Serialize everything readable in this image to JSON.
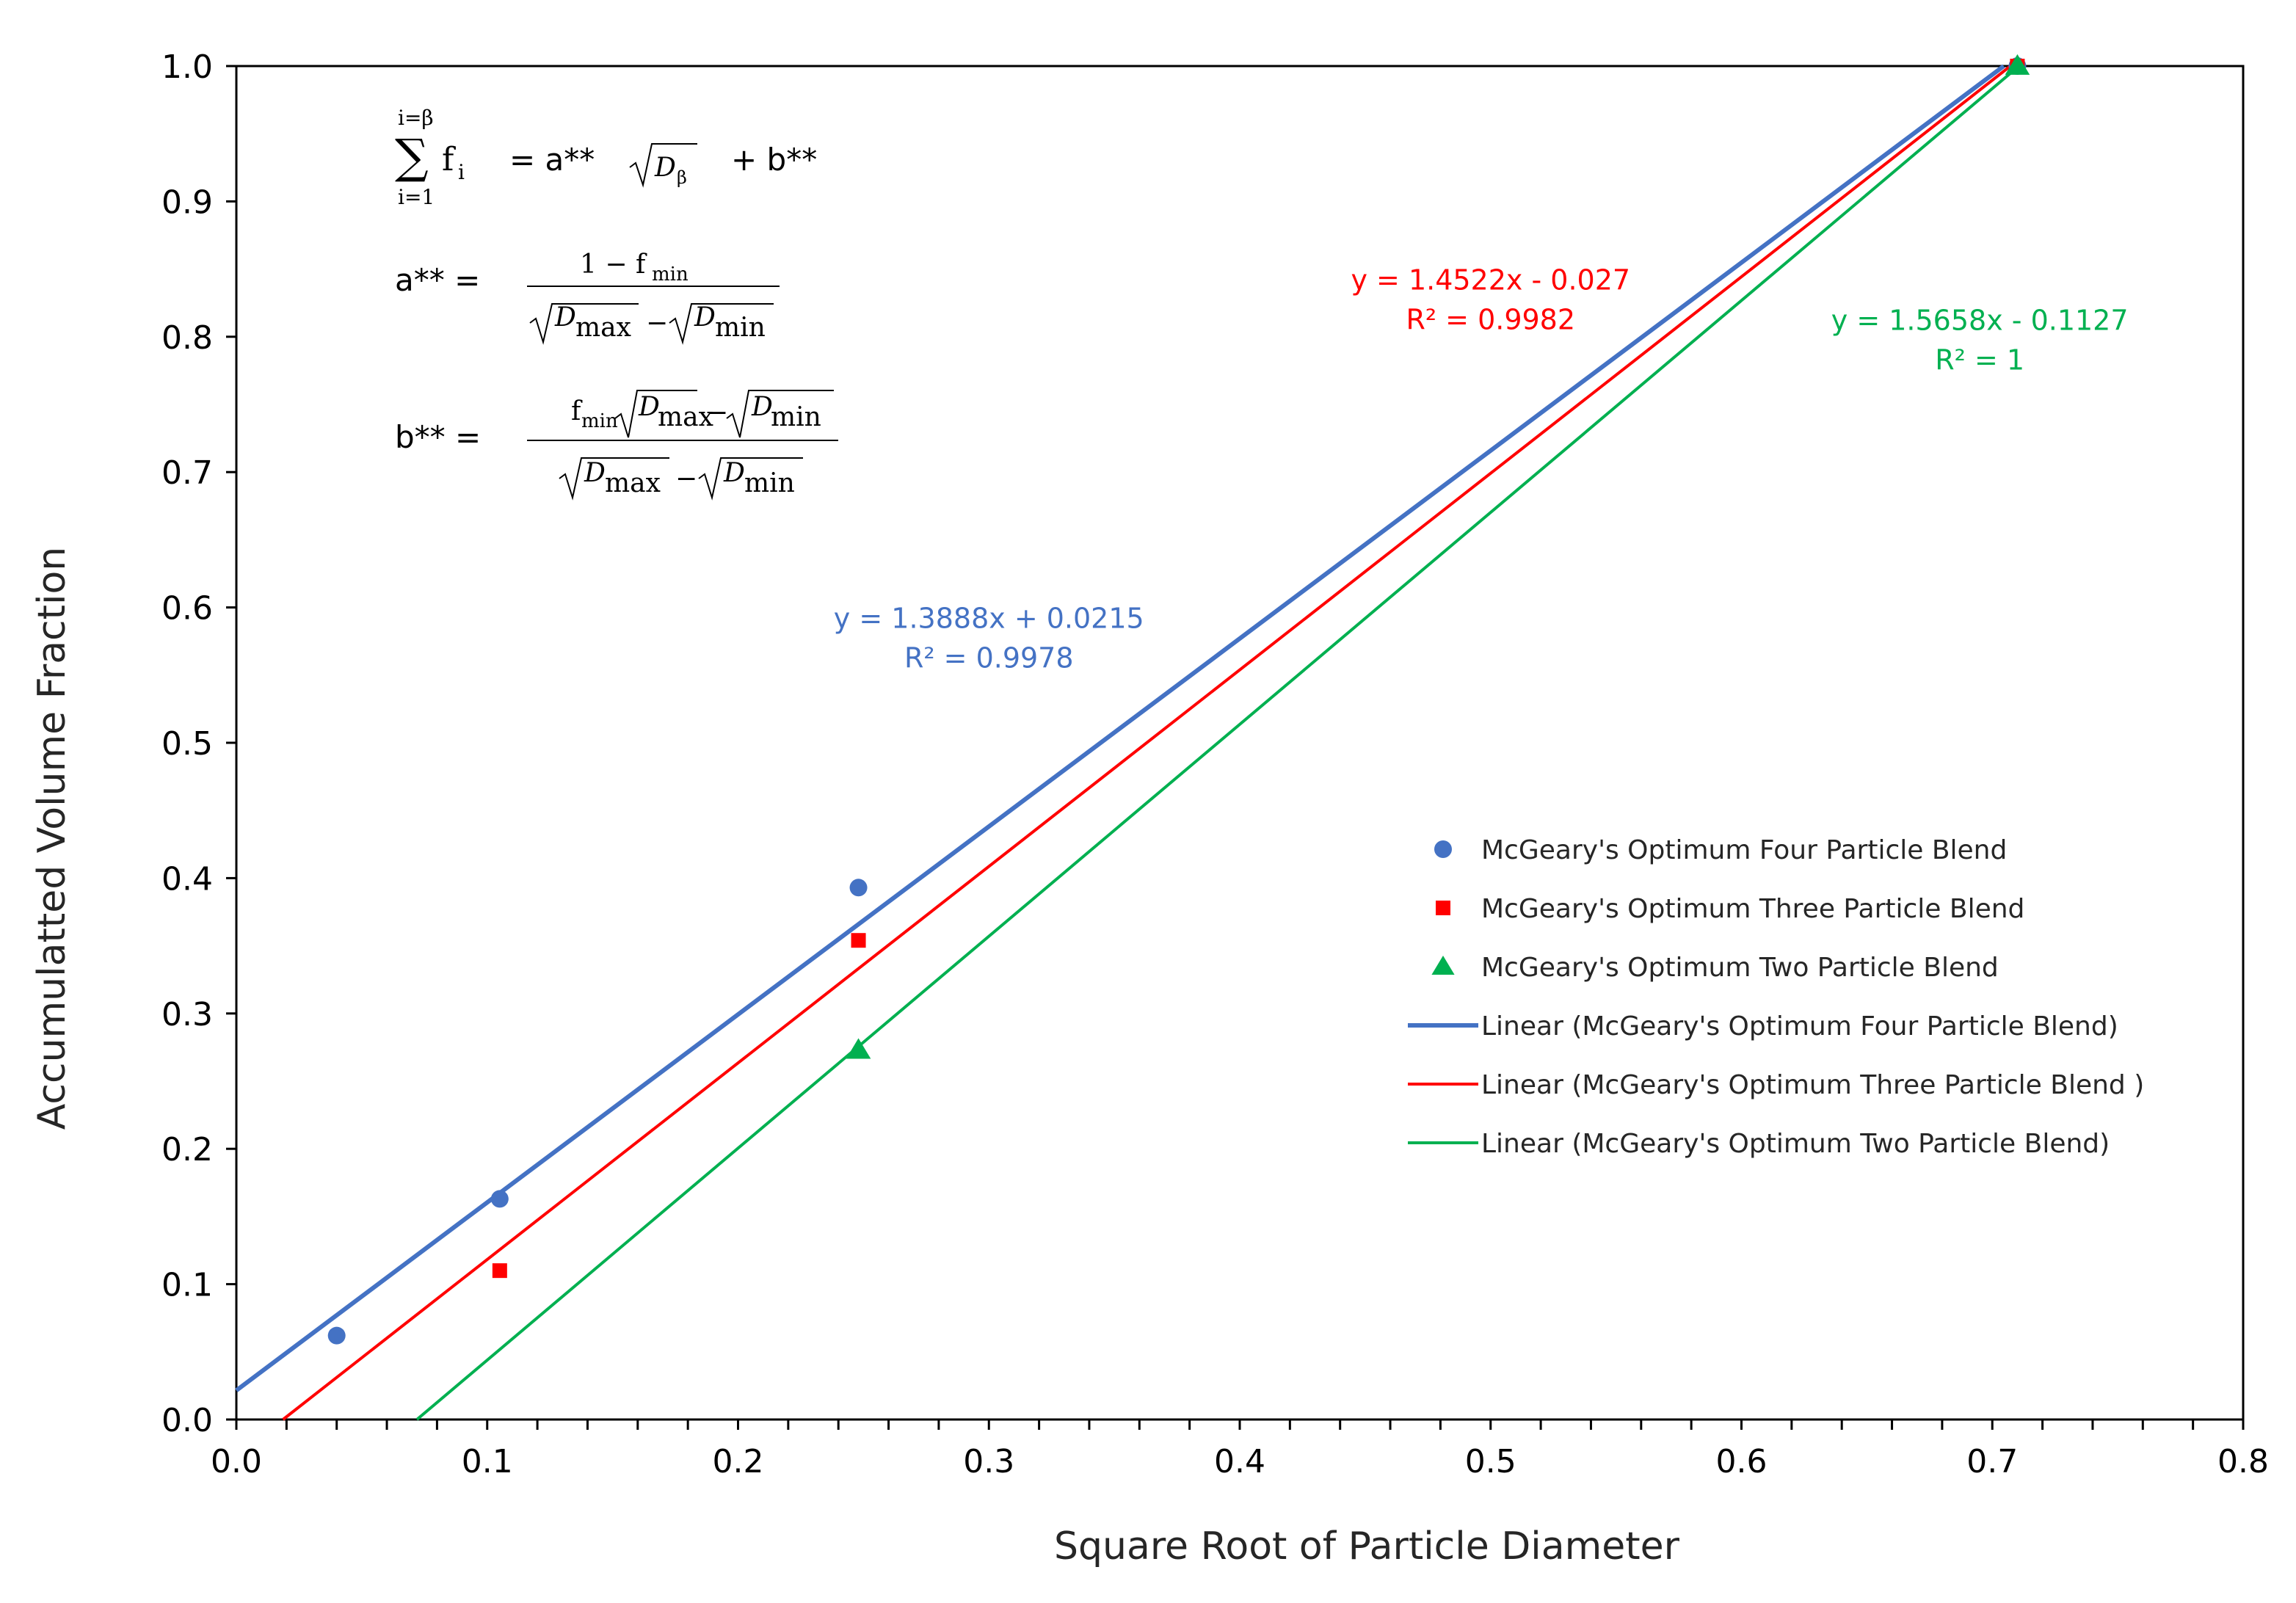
{
  "chart_data": {
    "type": "scatter",
    "xlabel": "Square Root of Particle Diameter",
    "ylabel": "Accumulatted Volume Fraction",
    "xlim": [
      0,
      0.8
    ],
    "ylim": [
      0,
      1.0
    ],
    "xticks": [
      "0.0",
      "0.1",
      "0.2",
      "0.3",
      "0.4",
      "0.5",
      "0.6",
      "0.7",
      "0.8"
    ],
    "yticks": [
      "0.0",
      "0.1",
      "0.2",
      "0.3",
      "0.4",
      "0.5",
      "0.6",
      "0.7",
      "0.8",
      "0.9",
      "1.0"
    ],
    "grid": false,
    "legend_position": "center-right",
    "series": [
      {
        "name": "McGeary's Optimum Four Particle Blend",
        "marker": "circle",
        "color": "#4472C4",
        "points": [
          [
            0.04,
            0.062
          ],
          [
            0.105,
            0.163
          ],
          [
            0.248,
            0.393
          ],
          [
            0.71,
            1.0
          ]
        ]
      },
      {
        "name": "McGeary's Optimum Three Particle Blend",
        "marker": "square",
        "color": "#FF0000",
        "points": [
          [
            0.105,
            0.11
          ],
          [
            0.248,
            0.354
          ],
          [
            0.71,
            1.0
          ]
        ]
      },
      {
        "name": "McGeary's Optimum Two Particle Blend",
        "marker": "triangle",
        "color": "#00B050",
        "points": [
          [
            0.248,
            0.273
          ],
          [
            0.71,
            1.0
          ]
        ]
      }
    ],
    "trendlines": [
      {
        "name": "Linear (McGeary's Optimum Four Particle Blend)",
        "color": "#4472C4",
        "slope": 1.3888,
        "intercept": 0.0215,
        "equation": "y = 1.3888x + 0.0215",
        "r2": "R² = 0.9978",
        "label_at": [
          0.3,
          0.585
        ]
      },
      {
        "name": "Linear (McGeary's Optimum Three Particle Blend )",
        "color": "#FF0000",
        "slope": 1.4522,
        "intercept": -0.027,
        "equation": "y = 1.4522x - 0.027",
        "r2": "R² = 0.9982",
        "label_at": [
          0.5,
          0.835
        ]
      },
      {
        "name": "Linear (McGeary's Optimum Two Particle Blend)",
        "color": "#00B050",
        "slope": 1.5658,
        "intercept": -0.1127,
        "equation": "y = 1.5658x - 0.1127",
        "r2": "R² = 1",
        "label_at": [
          0.695,
          0.805
        ]
      }
    ]
  },
  "formulas": {
    "sum_upper": "i=β",
    "sum_lower": "i=1",
    "sigma": "∑",
    "f_i": "f",
    "sub_i": "i",
    "eq1_rhs": "=   a**",
    "d_beta": "D",
    "sub_beta": "β",
    "plus_b": "+    b**",
    "a_lhs": "a**  =",
    "a_num": "1 − f",
    "sub_min": "min",
    "sub_max": "max",
    "b_lhs": "b**  =",
    "b_num_f": "f",
    "minus": "−",
    "d": "D"
  }
}
